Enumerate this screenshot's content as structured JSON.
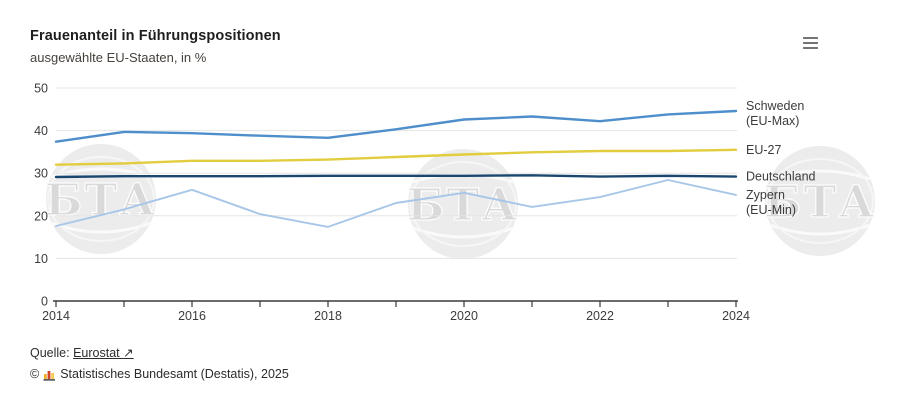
{
  "header": {
    "title": "Frauenanteil in Führungspositionen",
    "subtitle": "ausgewählte EU-Staaten, in %"
  },
  "menu": {
    "icon": "hamburger-menu-icon"
  },
  "chart_data": {
    "type": "line",
    "title": "Frauenanteil in Führungspositionen",
    "subtitle": "ausgewählte EU-Staaten, in %",
    "unit": "%",
    "x": [
      2014,
      2015,
      2016,
      2017,
      2018,
      2019,
      2020,
      2021,
      2022,
      2023,
      2024
    ],
    "xticks_labeled": [
      2014,
      2016,
      2018,
      2020,
      2022,
      2024
    ],
    "yticks": [
      0,
      10,
      20,
      30,
      40,
      50
    ],
    "ylim": [
      0,
      50
    ],
    "grid": true,
    "legend_position": "right-of-line-ends",
    "series": [
      {
        "name": "Schweden",
        "sublabel": "(EU-Max)",
        "color": "#4e8ecb",
        "values": [
          37.4,
          39.7,
          39.4,
          38.8,
          38.3,
          40.3,
          42.6,
          43.3,
          42.2,
          43.8,
          44.6
        ]
      },
      {
        "name": "EU-27",
        "sublabel": "",
        "color": "#e1cd3e",
        "values": [
          32.0,
          32.3,
          32.9,
          32.9,
          33.2,
          33.8,
          34.4,
          34.9,
          35.2,
          35.2,
          35.5
        ]
      },
      {
        "name": "Deutschland",
        "sublabel": "",
        "color": "#1a476f",
        "values": [
          29.1,
          29.3,
          29.3,
          29.3,
          29.4,
          29.4,
          29.4,
          29.5,
          29.2,
          29.4,
          29.2
        ]
      },
      {
        "name": "Zypern",
        "sublabel": "(EU-Min)",
        "color": "#a8c7e8",
        "values": [
          17.6,
          21.5,
          26.1,
          20.4,
          17.4,
          23.0,
          25.4,
          22.1,
          24.4,
          28.4,
          24.9
        ]
      }
    ],
    "axis_color": "#3a3a3a",
    "grid_color": "#e5e5e5",
    "label_color": "#3c3c3c"
  },
  "watermark": {
    "text": "БТА",
    "color": "#ececec",
    "letter_color": "#d9d9d9"
  },
  "footer": {
    "source_label": "Quelle:",
    "source_link": "Eurostat",
    "external_arrow": "↗",
    "copyright_symbol": "©",
    "copyright": "Statistisches Bundesamt (Destatis), 2025"
  }
}
